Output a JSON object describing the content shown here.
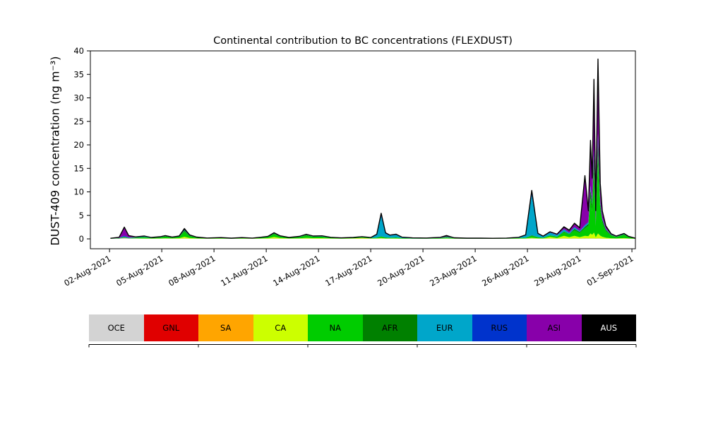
{
  "chart_data": {
    "type": "area",
    "stacked": true,
    "title": "Continental contribution to BC concentrations (FLEXDUST)",
    "ylabel": "DUST-409 concentration (ng m⁻³)",
    "xlabel": "",
    "grid": false,
    "legend_position": "below-chart",
    "outline_color": "#000000",
    "xlim": [
      -0.1,
      31.2
    ],
    "ylim": [
      -2.1,
      40
    ],
    "yticks": [
      0,
      5,
      10,
      15,
      20,
      25,
      30,
      35,
      40
    ],
    "xticks": [
      {
        "day": 1,
        "label": "02-Aug-2021"
      },
      {
        "day": 4,
        "label": "05-Aug-2021"
      },
      {
        "day": 7,
        "label": "08-Aug-2021"
      },
      {
        "day": 10,
        "label": "11-Aug-2021"
      },
      {
        "day": 13,
        "label": "14-Aug-2021"
      },
      {
        "day": 16,
        "label": "17-Aug-2021"
      },
      {
        "day": 19,
        "label": "20-Aug-2021"
      },
      {
        "day": 22,
        "label": "23-Aug-2021"
      },
      {
        "day": 25,
        "label": "26-Aug-2021"
      },
      {
        "day": 28,
        "label": "29-Aug-2021"
      },
      {
        "day": 31,
        "label": "01-Sep-2021"
      }
    ],
    "legend": {
      "items": [
        {
          "label": "OCE",
          "color": "#d3d3d3"
        },
        {
          "label": "GNL",
          "color": "#e00000"
        },
        {
          "label": "SA",
          "color": "#ffa500"
        },
        {
          "label": "CA",
          "color": "#ccff00"
        },
        {
          "label": "NA",
          "color": "#00cc00"
        },
        {
          "label": "AFR",
          "color": "#008000"
        },
        {
          "label": "EUR",
          "color": "#00a6ca"
        },
        {
          "label": "RUS",
          "color": "#0033cc"
        },
        {
          "label": "ASI",
          "color": "#8800aa"
        },
        {
          "label": "AUS",
          "color": "#000000"
        }
      ]
    },
    "columns": [
      "day_since_01-Aug-2021",
      "OCE",
      "GNL",
      "SA",
      "CA",
      "NA",
      "AFR",
      "EUR",
      "RUS",
      "ASI",
      "AUS"
    ],
    "points": [
      [
        1.05,
        0.04,
        0,
        0,
        0,
        0.04,
        0,
        0,
        0,
        0,
        0.04
      ],
      [
        1.55,
        0.08,
        0,
        0,
        0,
        0.08,
        0,
        0.04,
        0,
        0.08,
        0.05
      ],
      [
        1.85,
        0.2,
        0.05,
        0,
        0,
        0.15,
        0,
        0.1,
        0.2,
        1.6,
        0.2
      ],
      [
        2.1,
        0.1,
        0,
        0,
        0,
        0.1,
        0,
        0.05,
        0.05,
        0.3,
        0.1
      ],
      [
        2.5,
        0.08,
        0,
        0,
        0.05,
        0.15,
        0,
        0.05,
        0,
        0.05,
        0.05
      ],
      [
        3.0,
        0.05,
        0,
        0,
        0.05,
        0.25,
        0.05,
        0.15,
        0,
        0,
        0.05
      ],
      [
        3.4,
        0.05,
        0,
        0,
        0.03,
        0.12,
        0,
        0.05,
        0,
        0,
        0.05
      ],
      [
        3.9,
        0.05,
        0,
        0,
        0.05,
        0.2,
        0.05,
        0.05,
        0,
        0,
        0.05
      ],
      [
        4.2,
        0.06,
        0,
        0,
        0.08,
        0.35,
        0.08,
        0.05,
        0,
        0,
        0.08
      ],
      [
        4.6,
        0.05,
        0,
        0,
        0.05,
        0.15,
        0.05,
        0.05,
        0,
        0,
        0.05
      ],
      [
        5.0,
        0.05,
        0,
        0,
        0.1,
        0.3,
        0.05,
        0.05,
        0,
        0,
        0.05
      ],
      [
        5.3,
        0.1,
        0,
        0,
        0.35,
        1.1,
        0.25,
        0.1,
        0,
        0,
        0.3
      ],
      [
        5.6,
        0.05,
        0,
        0,
        0.15,
        0.4,
        0.1,
        0.05,
        0,
        0,
        0.1
      ],
      [
        6.0,
        0.05,
        0,
        0,
        0.05,
        0.15,
        0.05,
        0.03,
        0,
        0,
        0.05
      ],
      [
        6.6,
        0.04,
        0,
        0,
        0.03,
        0.08,
        0,
        0,
        0,
        0,
        0.04
      ],
      [
        7.4,
        0.04,
        0,
        0,
        0.04,
        0.12,
        0,
        0.03,
        0,
        0,
        0.04
      ],
      [
        8.0,
        0.03,
        0,
        0,
        0.02,
        0.08,
        0,
        0,
        0,
        0,
        0.03
      ],
      [
        8.6,
        0.04,
        0,
        0,
        0.04,
        0.1,
        0,
        0.05,
        0,
        0,
        0.04
      ],
      [
        9.2,
        0.03,
        0,
        0,
        0.03,
        0.08,
        0,
        0,
        0,
        0,
        0.03
      ],
      [
        9.7,
        0.05,
        0,
        0,
        0.05,
        0.15,
        0,
        0.05,
        0,
        0,
        0.05
      ],
      [
        10.1,
        0.05,
        0,
        0,
        0.1,
        0.25,
        0.05,
        0.05,
        0,
        0,
        0.05
      ],
      [
        10.45,
        0.08,
        0,
        0,
        0.35,
        0.6,
        0.1,
        0.05,
        0,
        0,
        0.12
      ],
      [
        10.8,
        0.05,
        0,
        0,
        0.15,
        0.3,
        0.05,
        0.05,
        0,
        0,
        0.05
      ],
      [
        11.3,
        0.04,
        0,
        0,
        0.05,
        0.15,
        0,
        0.03,
        0,
        0,
        0.04
      ],
      [
        11.9,
        0.05,
        0,
        0,
        0.08,
        0.25,
        0.05,
        0.05,
        0,
        0,
        0.05
      ],
      [
        12.3,
        0.06,
        0,
        0,
        0.15,
        0.5,
        0.12,
        0.05,
        0,
        0,
        0.1
      ],
      [
        12.7,
        0.05,
        0,
        0,
        0.1,
        0.3,
        0.05,
        0.05,
        0,
        0,
        0.05
      ],
      [
        13.2,
        0.05,
        0,
        0,
        0.1,
        0.3,
        0.05,
        0.1,
        0,
        0,
        0.05
      ],
      [
        13.7,
        0.04,
        0,
        0,
        0.05,
        0.15,
        0,
        0.05,
        0,
        0,
        0.04
      ],
      [
        14.3,
        0.03,
        0,
        0,
        0.03,
        0.1,
        0,
        0.03,
        0,
        0,
        0.03
      ],
      [
        15.0,
        0.04,
        0,
        0,
        0.08,
        0.12,
        0,
        0.03,
        0,
        0,
        0.04
      ],
      [
        15.5,
        0.05,
        0,
        0.05,
        0.12,
        0.15,
        0,
        0.05,
        0,
        0,
        0.05
      ],
      [
        16.0,
        0.04,
        0,
        0,
        0.06,
        0.1,
        0,
        0.05,
        0,
        0,
        0.04
      ],
      [
        16.35,
        0.05,
        0,
        0,
        0.08,
        0.15,
        0,
        0.6,
        0.05,
        0,
        0.05
      ],
      [
        16.6,
        0.1,
        0,
        0,
        0.1,
        0.3,
        0.05,
        4.3,
        0.25,
        0.05,
        0.3
      ],
      [
        16.85,
        0.05,
        0,
        0,
        0.05,
        0.2,
        0,
        0.8,
        0.1,
        0,
        0.1
      ],
      [
        17.1,
        0.05,
        0,
        0,
        0.05,
        0.15,
        0,
        0.45,
        0.05,
        0,
        0.05
      ],
      [
        17.45,
        0.05,
        0,
        0,
        0.05,
        0.2,
        0,
        0.55,
        0.05,
        0,
        0.1
      ],
      [
        17.8,
        0.04,
        0,
        0,
        0.03,
        0.1,
        0,
        0.15,
        0,
        0,
        0.04
      ],
      [
        18.4,
        0.03,
        0,
        0,
        0.02,
        0.08,
        0,
        0.05,
        0,
        0,
        0.03
      ],
      [
        19.2,
        0.03,
        0,
        0,
        0.02,
        0.07,
        0,
        0.03,
        0,
        0,
        0.03
      ],
      [
        20.0,
        0.04,
        0,
        0,
        0.03,
        0.1,
        0,
        0.05,
        0,
        0.03,
        0.08
      ],
      [
        20.35,
        0.06,
        0,
        0,
        0.05,
        0.2,
        0.05,
        0.1,
        0,
        0.05,
        0.2
      ],
      [
        20.8,
        0.04,
        0,
        0,
        0.03,
        0.08,
        0,
        0.03,
        0,
        0,
        0.05
      ],
      [
        21.5,
        0.03,
        0,
        0,
        0.02,
        0.06,
        0,
        0.02,
        0,
        0,
        0.03
      ],
      [
        22.3,
        0.03,
        0,
        0,
        0.02,
        0.05,
        0,
        0.02,
        0,
        0,
        0.03
      ],
      [
        23.0,
        0.02,
        0,
        0,
        0.02,
        0.05,
        0,
        0.02,
        0,
        0,
        0.02
      ],
      [
        23.8,
        0.03,
        0,
        0,
        0.02,
        0.06,
        0,
        0.03,
        0,
        0,
        0.03
      ],
      [
        24.5,
        0.04,
        0,
        0,
        0.04,
        0.1,
        0,
        0.1,
        0.02,
        0,
        0.04
      ],
      [
        24.9,
        0.05,
        0,
        0,
        0.05,
        0.15,
        0,
        0.5,
        0.05,
        0,
        0.05
      ],
      [
        25.25,
        0.1,
        0,
        0,
        0.15,
        0.4,
        0.1,
        8.6,
        0.5,
        0.05,
        0.4
      ],
      [
        25.6,
        0.05,
        0,
        0,
        0.08,
        0.2,
        0.05,
        0.6,
        0.1,
        0,
        0.1
      ],
      [
        25.9,
        0.04,
        0,
        0,
        0.05,
        0.15,
        0,
        0.25,
        0.05,
        0,
        0.05
      ],
      [
        26.3,
        0.06,
        0,
        0.05,
        0.3,
        0.3,
        0.05,
        0.55,
        0.05,
        0.05,
        0.1
      ],
      [
        26.7,
        0.05,
        0,
        0,
        0.15,
        0.25,
        0.05,
        0.3,
        0.05,
        0.05,
        0.1
      ],
      [
        27.1,
        0.08,
        0,
        0.05,
        0.5,
        0.8,
        0.15,
        0.4,
        0.1,
        0.3,
        0.2
      ],
      [
        27.4,
        0.06,
        0,
        0,
        0.3,
        0.6,
        0.1,
        0.2,
        0.05,
        0.4,
        0.15
      ],
      [
        27.7,
        0.08,
        0,
        0.05,
        0.5,
        1.2,
        0.3,
        0.3,
        0.1,
        0.6,
        0.2
      ],
      [
        28.0,
        0.06,
        0,
        0,
        0.3,
        0.9,
        0.2,
        0.2,
        0.05,
        0.5,
        0.15
      ],
      [
        28.3,
        0.1,
        0,
        0.05,
        0.5,
        1.6,
        0.3,
        0.3,
        0.1,
        9.8,
        0.7
      ],
      [
        28.5,
        0.08,
        0,
        0,
        0.5,
        2.2,
        0.4,
        0.3,
        0.1,
        2.0,
        0.4
      ],
      [
        28.62,
        0.1,
        0,
        0.05,
        1.0,
        7.5,
        2.0,
        0.5,
        0.2,
        7.8,
        1.8
      ],
      [
        28.72,
        0.08,
        0,
        0,
        0.8,
        5.0,
        1.5,
        0.4,
        0.15,
        4.0,
        1.0
      ],
      [
        28.82,
        0.1,
        0,
        0.05,
        1.2,
        13.5,
        3.0,
        0.8,
        0.3,
        12.0,
        3.0
      ],
      [
        28.92,
        0.05,
        0,
        0,
        0.3,
        2.4,
        0.5,
        0.2,
        0.05,
        2.0,
        0.5
      ],
      [
        29.05,
        0.1,
        0,
        0.05,
        1.0,
        16.5,
        3.5,
        1.0,
        0.3,
        12.5,
        3.3
      ],
      [
        29.18,
        0.08,
        0,
        0,
        0.6,
        5.5,
        1.2,
        0.4,
        0.1,
        3.0,
        0.9
      ],
      [
        29.3,
        0.06,
        0,
        0,
        0.4,
        3.0,
        0.6,
        0.25,
        0.05,
        1.2,
        0.4
      ],
      [
        29.5,
        0.05,
        0,
        0,
        0.2,
        1.4,
        0.3,
        0.15,
        0.05,
        0.4,
        0.2
      ],
      [
        29.8,
        0.04,
        0,
        0,
        0.1,
        0.6,
        0.1,
        0.08,
        0,
        0.1,
        0.08
      ],
      [
        30.1,
        0.03,
        0,
        0,
        0.06,
        0.3,
        0.05,
        0.05,
        0,
        0.05,
        0.05
      ],
      [
        30.55,
        0.05,
        0,
        0,
        0.12,
        0.7,
        0.1,
        0.08,
        0,
        0,
        0.1
      ],
      [
        30.8,
        0.04,
        0,
        0,
        0.06,
        0.3,
        0.05,
        0.04,
        0,
        0,
        0.05
      ],
      [
        31.2,
        0.02,
        0,
        0,
        0.02,
        0.06,
        0,
        0.02,
        0,
        0,
        0.02
      ]
    ]
  }
}
